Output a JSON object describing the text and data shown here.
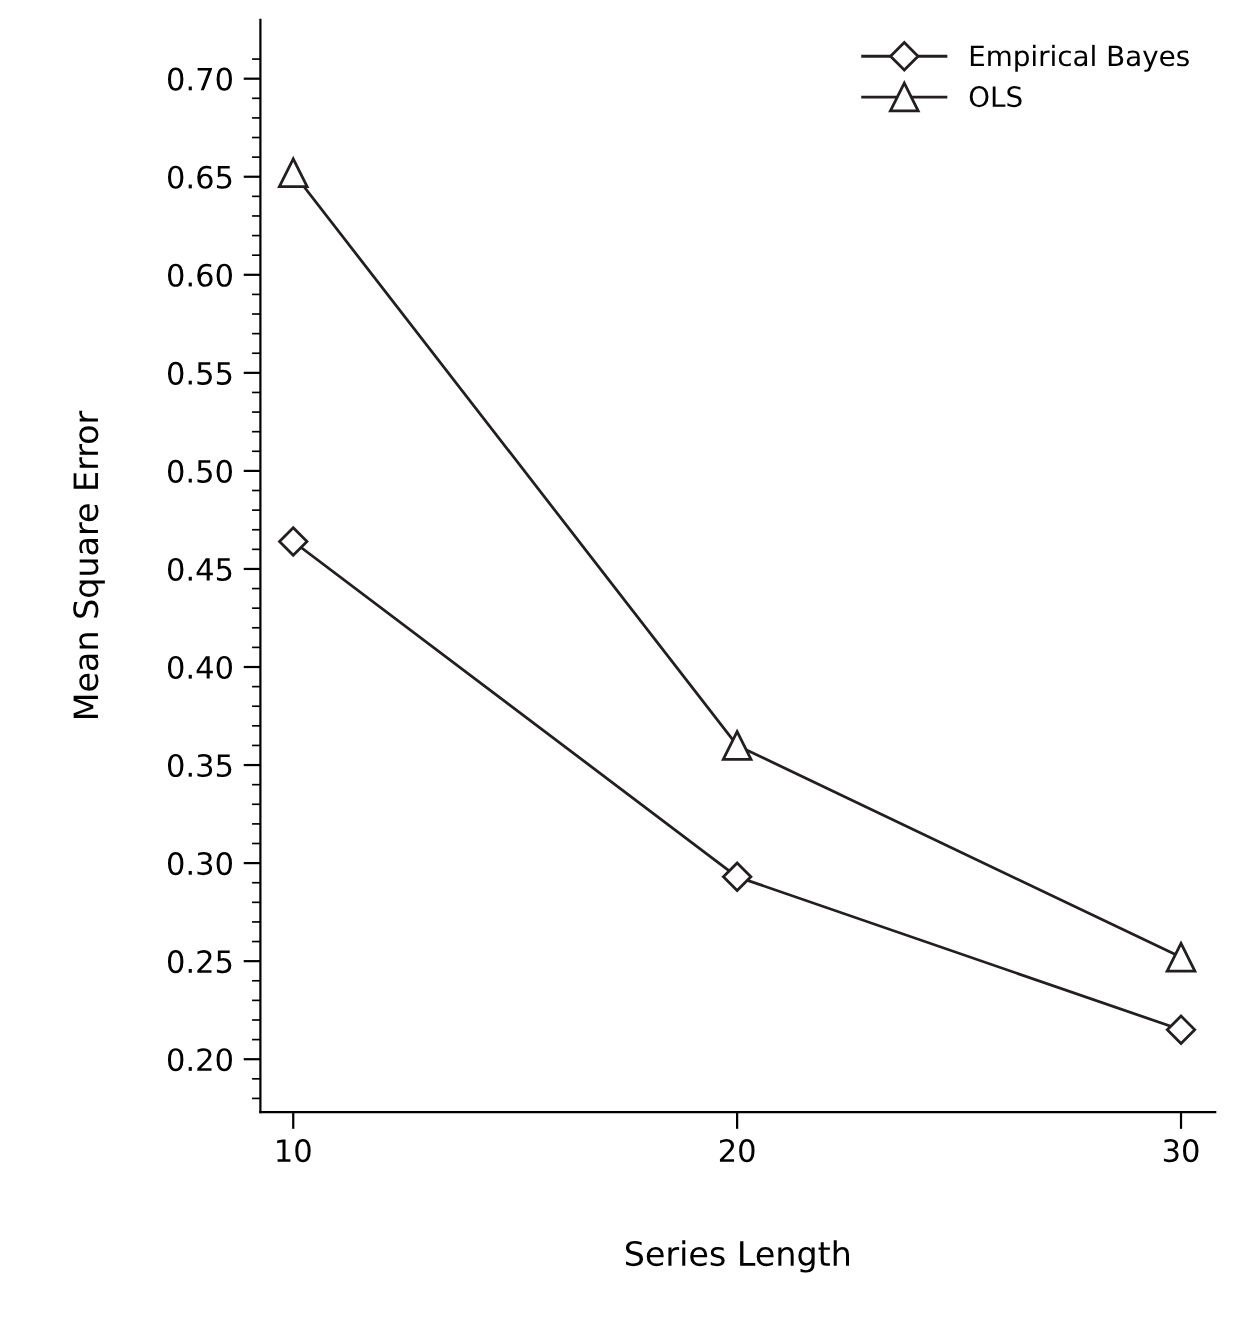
{
  "chart_data": {
    "type": "line",
    "xlabel": "Series Length",
    "ylabel": "Mean Square Error",
    "x": [
      10,
      20,
      30
    ],
    "series": [
      {
        "name": "Empirical Bayes",
        "color": "#231f20",
        "marker": "diamond",
        "values": [
          0.464,
          0.293,
          0.215
        ]
      },
      {
        "name": "OLS",
        "color": "#231f20",
        "marker": "triangle",
        "values": [
          0.652,
          0.36,
          0.252
        ]
      }
    ],
    "xlim": [
      9.26,
      30.77
    ],
    "xticks": [
      10,
      20,
      30
    ],
    "ylim": [
      0.173,
      0.73
    ],
    "yticks": [
      {
        "value": 0.2,
        "label": "0.20"
      },
      {
        "value": 0.25,
        "label": "0.25"
      },
      {
        "value": 0.3,
        "label": "0.30"
      },
      {
        "value": 0.35,
        "label": "0.35"
      },
      {
        "value": 0.4,
        "label": "0.40"
      },
      {
        "value": 0.45,
        "label": "0.45"
      },
      {
        "value": 0.5,
        "label": "0.50"
      },
      {
        "value": 0.55,
        "label": "0.55"
      },
      {
        "value": 0.6,
        "label": "0.60"
      },
      {
        "value": 0.65,
        "label": "0.65"
      },
      {
        "value": 0.7,
        "label": "0.70"
      }
    ],
    "grid": false,
    "legend": "top right",
    "line_style": "solid"
  }
}
